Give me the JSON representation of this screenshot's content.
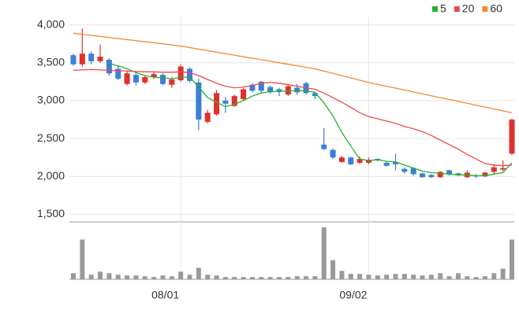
{
  "chart_data": {
    "type": "candlestick",
    "categories": [
      null,
      null,
      null,
      null,
      null,
      null,
      null,
      null,
      null,
      null,
      null,
      null,
      "08/01",
      null,
      null,
      null,
      null,
      null,
      null,
      null,
      null,
      null,
      null,
      null,
      null,
      null,
      null,
      null,
      null,
      null,
      null,
      null,
      null,
      "09/02",
      null,
      null,
      null,
      null,
      null,
      null,
      null,
      null,
      null,
      null,
      null,
      null,
      null,
      null,
      null,
      null
    ],
    "open": [
      3600,
      3480,
      3620,
      3520,
      3540,
      3420,
      3220,
      3340,
      3240,
      3310,
      3340,
      3210,
      3270,
      3420,
      3240,
      2720,
      2820,
      3000,
      2930,
      3020,
      3210,
      3250,
      3180,
      3150,
      3080,
      3170,
      3230,
      3100,
      2420,
      2350,
      2190,
      2250,
      2180,
      2180,
      2230,
      2180,
      2190,
      2100,
      2110,
      2040,
      2020,
      1990,
      2080,
      2040,
      1990,
      2010,
      2000,
      2060,
      2090,
      2300
    ],
    "high": [
      3620,
      3950,
      3650,
      3740,
      3560,
      3460,
      3400,
      3360,
      3330,
      3380,
      3360,
      3310,
      3480,
      3440,
      3290,
      2880,
      3140,
      3050,
      3080,
      3170,
      3230,
      3260,
      3200,
      3170,
      3210,
      3220,
      3250,
      3120,
      2640,
      2370,
      2270,
      2260,
      2260,
      2250,
      2240,
      2200,
      2300,
      2120,
      2120,
      2050,
      2030,
      2070,
      2090,
      2050,
      2080,
      2030,
      2060,
      2160,
      2210,
      2760
    ],
    "low": [
      3460,
      3450,
      3480,
      3500,
      3330,
      3270,
      3200,
      3200,
      3220,
      3290,
      3200,
      3170,
      3250,
      3240,
      2610,
      2700,
      2800,
      2840,
      2920,
      3000,
      3110,
      3110,
      3090,
      3060,
      3060,
      3080,
      3080,
      3020,
      2350,
      2230,
      2180,
      2150,
      2160,
      2160,
      2200,
      2130,
      2080,
      2040,
      2010,
      1980,
      1980,
      1980,
      2010,
      2000,
      1980,
      1980,
      1990,
      2030,
      2070,
      2280
    ],
    "close": [
      3480,
      3620,
      3520,
      3580,
      3360,
      3290,
      3360,
      3240,
      3310,
      3350,
      3220,
      3280,
      3450,
      3260,
      2750,
      2840,
      3100,
      2960,
      3060,
      3150,
      3130,
      3130,
      3110,
      3120,
      3190,
      3110,
      3100,
      3060,
      2360,
      2250,
      2250,
      2160,
      2230,
      2220,
      2210,
      2140,
      2160,
      2060,
      2030,
      1990,
      1990,
      2060,
      2030,
      2020,
      2050,
      2000,
      2050,
      2120,
      2110,
      2750
    ],
    "up_color": "#e0312f",
    "down_color": "#3c7fd8",
    "series": [
      {
        "name": "5",
        "color": "#27b327",
        "values": [
          null,
          null,
          null,
          null,
          3490,
          3460,
          3420,
          3370,
          3330,
          3310,
          3300,
          3290,
          3310,
          3310,
          3180,
          3040,
          2980,
          2920,
          2950,
          3000,
          3060,
          3100,
          3120,
          3120,
          3130,
          3130,
          3130,
          3110,
          2970,
          2800,
          2580,
          2400,
          2230,
          2210,
          2220,
          2200,
          2190,
          2150,
          2110,
          2070,
          2050,
          2040,
          2030,
          2020,
          2020,
          2010,
          2010,
          2030,
          2050,
          2180
        ]
      },
      {
        "name": "20",
        "color": "#ee4a4a",
        "values": [
          3400,
          3405,
          3410,
          3405,
          3400,
          3395,
          3390,
          3385,
          3380,
          3380,
          3375,
          3375,
          3380,
          3370,
          3330,
          3280,
          3230,
          3190,
          3170,
          3180,
          3200,
          3230,
          3240,
          3230,
          3210,
          3190,
          3170,
          3150,
          3100,
          3040,
          2980,
          2910,
          2840,
          2790,
          2760,
          2730,
          2700,
          2660,
          2630,
          2590,
          2540,
          2480,
          2420,
          2360,
          2290,
          2230,
          2170,
          2150,
          2140,
          2150
        ]
      },
      {
        "name": "60",
        "color": "#f28a2e",
        "values": [
          3890,
          3876,
          3862,
          3848,
          3834,
          3820,
          3806,
          3792,
          3778,
          3764,
          3750,
          3736,
          3720,
          3700,
          3680,
          3660,
          3640,
          3620,
          3600,
          3580,
          3560,
          3540,
          3520,
          3500,
          3480,
          3460,
          3440,
          3420,
          3390,
          3360,
          3330,
          3300,
          3270,
          3240,
          3215,
          3190,
          3165,
          3140,
          3115,
          3090,
          3065,
          3040,
          3015,
          2990,
          2965,
          2940,
          2915,
          2890,
          2865,
          2840
        ]
      }
    ],
    "ylim": [
      1400,
      4100
    ],
    "yticks": [
      {
        "value": 1500,
        "label": "1,500"
      },
      {
        "value": 2000,
        "label": "2,000"
      },
      {
        "value": 2500,
        "label": "2,500"
      },
      {
        "value": 3000,
        "label": "3,000"
      },
      {
        "value": 3500,
        "label": "3,500"
      },
      {
        "value": 4000,
        "label": "4,000"
      }
    ],
    "volume": {
      "color": "#9a9a9a",
      "ylim": [
        0,
        70
      ],
      "values": [
        8,
        52,
        6,
        10,
        8,
        6,
        5,
        5,
        4,
        3,
        5,
        4,
        10,
        6,
        15,
        6,
        5,
        3,
        3,
        3,
        3,
        3,
        3,
        3,
        3,
        4,
        4,
        4,
        68,
        25,
        11,
        7,
        7,
        6,
        5,
        6,
        7,
        7,
        6,
        5,
        6,
        8,
        4,
        8,
        4,
        3,
        4,
        8,
        14,
        52
      ]
    }
  }
}
